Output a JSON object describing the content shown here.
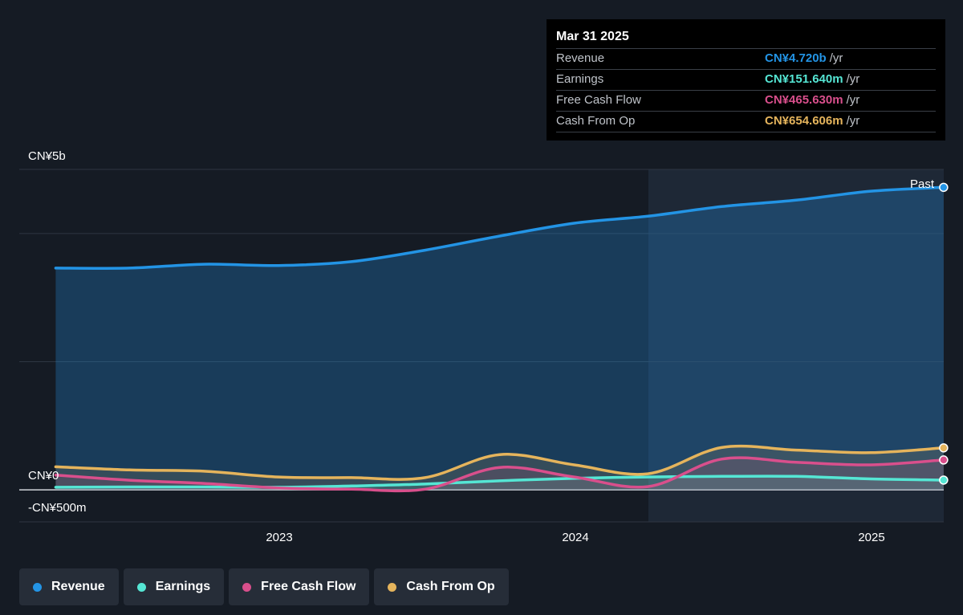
{
  "colors": {
    "revenue": "#2394e5",
    "earnings": "#55e6d4",
    "free_cash_flow": "#d94f8c",
    "cash_from_op": "#e5b45c"
  },
  "tooltip": {
    "date": "Mar 31 2025",
    "rows": [
      {
        "label": "Revenue",
        "value": "CN¥4.720b",
        "unit": "/yr",
        "color": "#2394e5"
      },
      {
        "label": "Earnings",
        "value": "CN¥151.640m",
        "unit": "/yr",
        "color": "#55e6d4"
      },
      {
        "label": "Free Cash Flow",
        "value": "CN¥465.630m",
        "unit": "/yr",
        "color": "#d94f8c"
      },
      {
        "label": "Cash From Op",
        "value": "CN¥654.606m",
        "unit": "/yr",
        "color": "#e5b45c"
      }
    ]
  },
  "legend": [
    {
      "label": "Revenue",
      "color": "#2394e5"
    },
    {
      "label": "Earnings",
      "color": "#55e6d4"
    },
    {
      "label": "Free Cash Flow",
      "color": "#d94f8c"
    },
    {
      "label": "Cash From Op",
      "color": "#e5b45c"
    }
  ],
  "chart_data": {
    "type": "line",
    "past_label": "Past",
    "y_tick_labels": [
      "CN¥5b",
      "CN¥0",
      "-CN¥500m"
    ],
    "x_tick_labels": [
      "2023",
      "2024",
      "2025"
    ],
    "ylim": [
      -500,
      5000
    ],
    "y_unit": "CN¥m",
    "series": [
      {
        "name": "Revenue",
        "x": [
          "2022-03-31",
          "2022-06-30",
          "2022-09-30",
          "2022-12-31",
          "2023-03-31",
          "2023-06-30",
          "2023-09-30",
          "2023-12-31",
          "2024-03-31",
          "2024-06-30",
          "2024-09-30",
          "2024-12-31",
          "2025-03-31"
        ],
        "values": [
          3460,
          3460,
          3520,
          3500,
          3560,
          3740,
          3960,
          4160,
          4270,
          4420,
          4520,
          4660,
          4720
        ]
      },
      {
        "name": "Earnings",
        "x": [
          "2022-03-31",
          "2022-06-30",
          "2022-09-30",
          "2022-12-31",
          "2023-03-31",
          "2023-06-30",
          "2023-09-30",
          "2023-12-31",
          "2024-03-31",
          "2024-06-30",
          "2024-09-30",
          "2024-12-31",
          "2025-03-31"
        ],
        "values": [
          40,
          45,
          45,
          40,
          60,
          90,
          140,
          180,
          200,
          210,
          210,
          170,
          151.64
        ]
      },
      {
        "name": "Free Cash Flow",
        "x": [
          "2022-03-31",
          "2022-06-30",
          "2022-09-30",
          "2022-12-31",
          "2023-03-31",
          "2023-06-30",
          "2023-09-30",
          "2023-12-31",
          "2024-03-31",
          "2024-06-30",
          "2024-09-30",
          "2024-12-31",
          "2025-03-31"
        ],
        "values": [
          230,
          150,
          100,
          30,
          10,
          10,
          350,
          200,
          50,
          480,
          430,
          390,
          465.63
        ]
      },
      {
        "name": "Cash From Op",
        "x": [
          "2022-03-31",
          "2022-06-30",
          "2022-09-30",
          "2022-12-31",
          "2023-03-31",
          "2023-06-30",
          "2023-09-30",
          "2023-12-31",
          "2024-03-31",
          "2024-06-30",
          "2024-09-30",
          "2024-12-31",
          "2025-03-31"
        ],
        "values": [
          360,
          310,
          290,
          200,
          190,
          190,
          550,
          390,
          250,
          660,
          620,
          580,
          654.606
        ]
      }
    ]
  }
}
